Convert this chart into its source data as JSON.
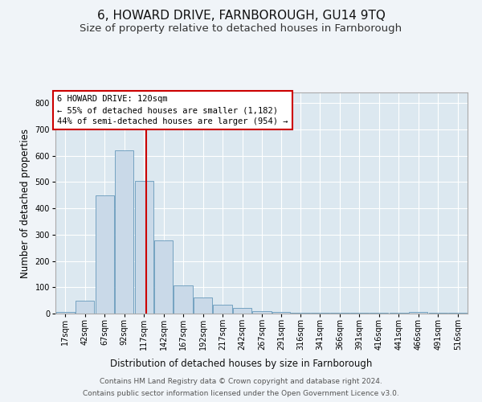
{
  "title": "6, HOWARD DRIVE, FARNBOROUGH, GU14 9TQ",
  "subtitle": "Size of property relative to detached houses in Farnborough",
  "xlabel": "Distribution of detached houses by size in Farnborough",
  "ylabel": "Number of detached properties",
  "bar_color": "#c9d9e8",
  "bar_edge_color": "#6699bb",
  "fig_bg_color": "#f0f4f8",
  "plot_bg_color": "#dce8f0",
  "grid_color": "#ffffff",
  "vline_color": "#cc0000",
  "vline_x": 120,
  "annotation_text": "6 HOWARD DRIVE: 120sqm\n← 55% of detached houses are smaller (1,182)\n44% of semi-detached houses are larger (954) →",
  "footer_line1": "Contains HM Land Registry data © Crown copyright and database right 2024.",
  "footer_line2": "Contains public sector information licensed under the Open Government Licence v3.0.",
  "categories": [
    "17sqm",
    "42sqm",
    "67sqm",
    "92sqm",
    "117sqm",
    "142sqm",
    "167sqm",
    "192sqm",
    "217sqm",
    "242sqm",
    "267sqm",
    "291sqm",
    "316sqm",
    "341sqm",
    "366sqm",
    "391sqm",
    "416sqm",
    "441sqm",
    "466sqm",
    "491sqm",
    "516sqm"
  ],
  "bin_edges": [
    4.5,
    29.5,
    54.5,
    79.5,
    104.5,
    129.5,
    154.5,
    179.5,
    204.5,
    229.5,
    254.5,
    279.5,
    303.5,
    328.5,
    353.5,
    378.5,
    403.5,
    428.5,
    453.5,
    478.5,
    503.5,
    528.5
  ],
  "bar_heights": [
    5,
    50,
    450,
    620,
    505,
    278,
    108,
    60,
    35,
    20,
    8,
    5,
    2,
    2,
    2,
    2,
    2,
    2,
    5,
    2,
    2
  ],
  "ylim": [
    0,
    840
  ],
  "yticks": [
    0,
    100,
    200,
    300,
    400,
    500,
    600,
    700,
    800
  ],
  "title_fontsize": 11,
  "subtitle_fontsize": 9.5,
  "label_fontsize": 8.5,
  "tick_fontsize": 7,
  "footer_fontsize": 6.5,
  "annot_fontsize": 7.5
}
